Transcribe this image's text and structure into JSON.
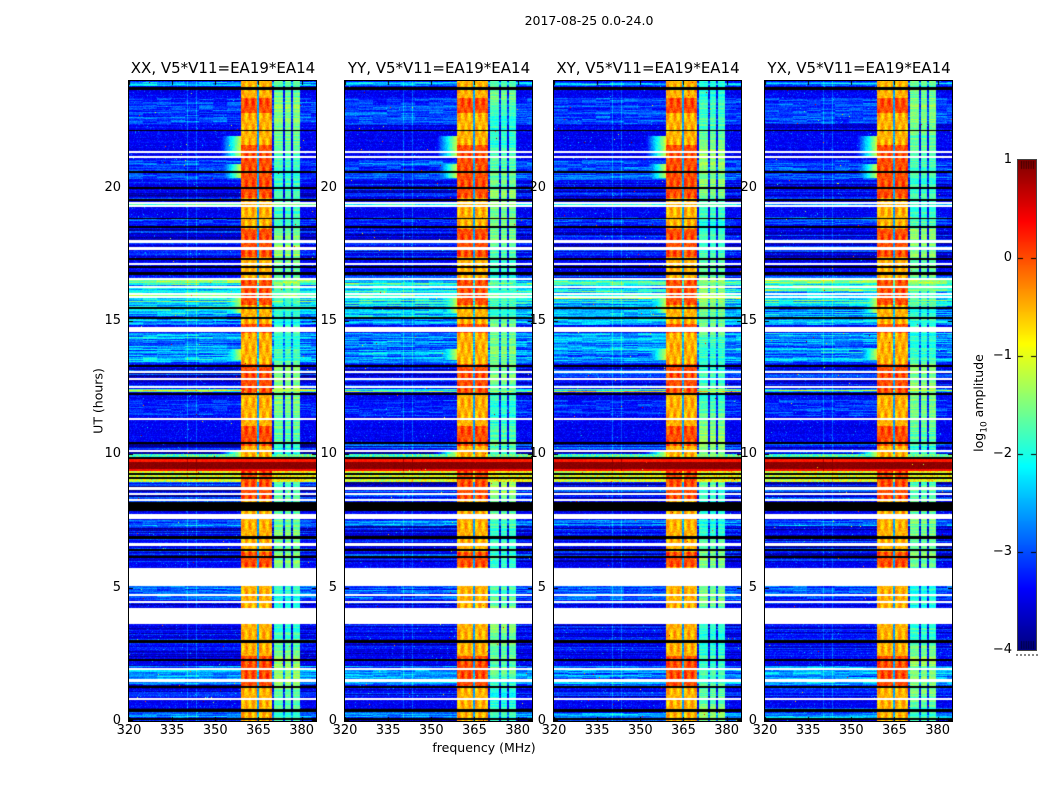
{
  "figure": {
    "title": "2017-08-25 0.0-24.0",
    "background_color": "#ffffff",
    "text_color": "#000000"
  },
  "chart_data": {
    "type": "heatmap",
    "subtype": "radio-dynamic-spectrum",
    "title": "2017-08-25 0.0-24.0",
    "panels": [
      {
        "label": "XX, V5*V11=EA19*EA14"
      },
      {
        "label": "YY, V5*V11=EA19*EA14"
      },
      {
        "label": "XY, V5*V11=EA19*EA14"
      },
      {
        "label": "YX, V5*V11=EA19*EA14"
      }
    ],
    "x_axis": {
      "label": "frequency (MHz)",
      "min": 320,
      "max": 385,
      "ticks": [
        320,
        335,
        350,
        365,
        380
      ]
    },
    "y_axis": {
      "label": "UT (hours)",
      "min": 0,
      "max": 24,
      "ticks": [
        0,
        5,
        10,
        15,
        20
      ]
    },
    "colorbar": {
      "label_pre": "log",
      "label_sub": "10",
      "label_post": " amplitude",
      "min": -4,
      "max": 1,
      "ticks": [
        1,
        0,
        -1,
        -2,
        -3,
        -4
      ],
      "colormap": "jet"
    },
    "features": {
      "background_level": -3.55,
      "faint_line_level": 0.45,
      "faint_lines": [
        340.3,
        343.5
      ],
      "vertical_bands": [
        {
          "f0": 358.8,
          "f1": 364.4,
          "level": -0.5,
          "kind": "strong"
        },
        {
          "f0": 364.4,
          "f1": 365.3,
          "level": -2.6,
          "kind": "gap"
        },
        {
          "f0": 365.3,
          "f1": 369.6,
          "level": -0.5,
          "kind": "strong"
        },
        {
          "f0": 370.4,
          "f1": 373.6,
          "level": -1.75,
          "kind": "weak"
        },
        {
          "f0": 374.1,
          "f1": 376.4,
          "level": -1.75,
          "kind": "weak"
        },
        {
          "f0": 376.9,
          "f1": 379.6,
          "level": -1.75,
          "kind": "weak"
        }
      ],
      "white_gaps": [
        [
          21.38,
          21.3
        ],
        [
          21.18,
          21.1
        ],
        [
          19.47,
          19.4
        ],
        [
          19.34,
          19.28
        ],
        [
          18.02,
          17.94
        ],
        [
          17.76,
          17.68
        ],
        [
          17.16,
          17.1
        ],
        [
          16.62,
          16.54
        ],
        [
          16.32,
          16.24
        ],
        [
          16.06,
          15.98
        ],
        [
          15.92,
          15.86
        ],
        [
          14.78,
          14.58
        ],
        [
          13.12,
          13.04
        ],
        [
          12.88,
          12.8
        ],
        [
          12.56,
          12.48
        ],
        [
          11.36,
          11.28
        ],
        [
          10.16,
          10.08
        ],
        [
          8.76,
          8.68
        ],
        [
          8.56,
          8.48
        ],
        [
          8.34,
          8.26
        ],
        [
          7.78,
          7.56
        ],
        [
          6.66,
          6.58
        ],
        [
          5.74,
          5.08
        ],
        [
          4.76,
          4.68
        ],
        [
          4.5,
          4.42
        ],
        [
          4.22,
          3.62
        ],
        [
          1.98,
          1.9
        ],
        [
          1.56,
          1.48
        ],
        [
          0.86,
          0.78
        ]
      ],
      "black_rows": [
        [
          23.76,
          23.66
        ],
        [
          22.16,
          22.12
        ],
        [
          20.62,
          20.56
        ],
        [
          20.04,
          19.96
        ],
        [
          19.56,
          19.5
        ],
        [
          18.88,
          18.84
        ],
        [
          18.56,
          18.48
        ],
        [
          17.36,
          17.28
        ],
        [
          17.06,
          16.98
        ],
        [
          16.82,
          16.74
        ],
        [
          15.52,
          15.44
        ],
        [
          15.16,
          15.08
        ],
        [
          13.36,
          13.28
        ],
        [
          12.3,
          12.22
        ],
        [
          10.46,
          10.38
        ],
        [
          9.9,
          9.84
        ],
        [
          9.3,
          9.24
        ],
        [
          9.14,
          9.08
        ],
        [
          8.2,
          7.86
        ],
        [
          6.92,
          6.84
        ],
        [
          6.46,
          6.38
        ],
        [
          6.2,
          6.12
        ],
        [
          3.02,
          2.94
        ],
        [
          2.32,
          2.24
        ],
        [
          1.32,
          1.24
        ],
        [
          0.46,
          0.32
        ],
        [
          0.1,
          0.04
        ]
      ],
      "burst_rows": [
        [
          10.02,
          9.9,
          -1.6
        ],
        [
          9.82,
          9.72,
          0.25
        ],
        [
          9.72,
          9.46,
          0.95
        ],
        [
          9.46,
          9.36,
          0.35
        ],
        [
          9.36,
          8.96,
          -0.9
        ]
      ],
      "cyan_rows": [
        [
          23.97,
          23.82,
          1.0
        ],
        [
          23.35,
          22.4,
          0.5
        ],
        [
          21.05,
          20.3,
          0.55
        ],
        [
          19.45,
          19.36,
          1.8
        ],
        [
          18.9,
          18.6,
          0.45
        ],
        [
          16.52,
          15.56,
          1.6
        ],
        [
          15.56,
          14.84,
          1.05
        ],
        [
          14.56,
          13.42,
          0.95
        ],
        [
          12.46,
          12.32,
          2.0
        ],
        [
          12.02,
          11.44,
          0.35
        ],
        [
          7.54,
          7.32,
          0.8
        ],
        [
          5.06,
          4.55,
          0.6
        ],
        [
          2.06,
          1.36,
          0.9
        ],
        [
          0.3,
          0.12,
          0.9
        ]
      ],
      "bleed_rows": [
        [
          21.95,
          21.15
        ],
        [
          20.9,
          20.35
        ],
        [
          15.95,
          15.3
        ],
        [
          13.95,
          13.55
        ],
        [
          10.1,
          9.35
        ]
      ],
      "band_hot": [
        [
          23.35,
          22.8
        ],
        [
          21.6,
          19.6
        ],
        [
          18.45,
          17.4
        ],
        [
          16.6,
          15.6
        ],
        [
          14.9,
          14.55
        ],
        [
          13.4,
          12.3
        ],
        [
          11.05,
          10.3
        ],
        [
          9.36,
          8.3
        ],
        [
          6.35,
          5.76
        ],
        [
          2.45,
          1.25
        ]
      ],
      "stripe_zones": [
        [
          23.1,
          22.2,
          0.3
        ],
        [
          20.2,
          19.3,
          0.45
        ],
        [
          18.45,
          17.4,
          0.5
        ],
        [
          16.7,
          15.5,
          0.55
        ],
        [
          14.5,
          13.4,
          0.4
        ],
        [
          13.25,
          12.5,
          0.55
        ],
        [
          10.45,
          9.9,
          0.55
        ],
        [
          8.95,
          7.9,
          0.6
        ],
        [
          7.55,
          5.95,
          0.5
        ],
        [
          5.06,
          4.3,
          0.45
        ],
        [
          3.6,
          2.4,
          0.35
        ],
        [
          2.1,
          0.9,
          0.5
        ],
        [
          0.5,
          0.0,
          0.55
        ]
      ]
    }
  }
}
